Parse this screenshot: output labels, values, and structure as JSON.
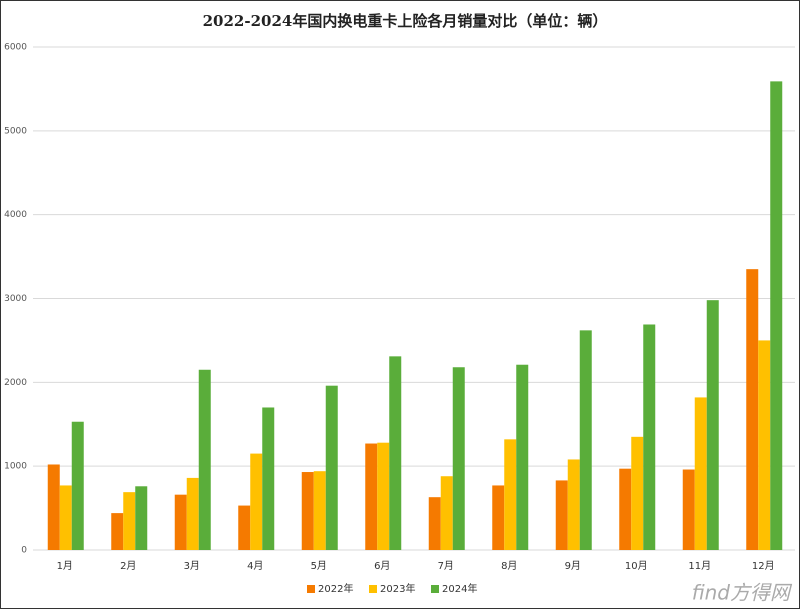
{
  "chart_data": {
    "type": "bar",
    "title": "2022-2024年国内换电重卡上险各月销量对比（单位：辆）",
    "categories": [
      "1月",
      "2月",
      "3月",
      "4月",
      "5月",
      "6月",
      "7月",
      "8月",
      "9月",
      "10月",
      "11月",
      "12月"
    ],
    "series": [
      {
        "name": "2022年",
        "color": "#f57a00",
        "values": [
          1020,
          440,
          660,
          530,
          930,
          1270,
          630,
          770,
          830,
          970,
          960,
          3350
        ]
      },
      {
        "name": "2023年",
        "color": "#ffc000",
        "values": [
          770,
          690,
          860,
          1150,
          940,
          1280,
          880,
          1320,
          1080,
          1350,
          1820,
          2500
        ]
      },
      {
        "name": "2024年",
        "color": "#5aad3a",
        "values": [
          1530,
          760,
          2150,
          1700,
          1960,
          2310,
          2180,
          2210,
          2620,
          2690,
          2980,
          5590
        ]
      }
    ],
    "ylim": [
      0,
      6000
    ],
    "yticks": [
      0,
      1000,
      2000,
      3000,
      4000,
      5000,
      6000
    ],
    "grid": true,
    "legend": "bottom",
    "watermark": "find方得网"
  }
}
